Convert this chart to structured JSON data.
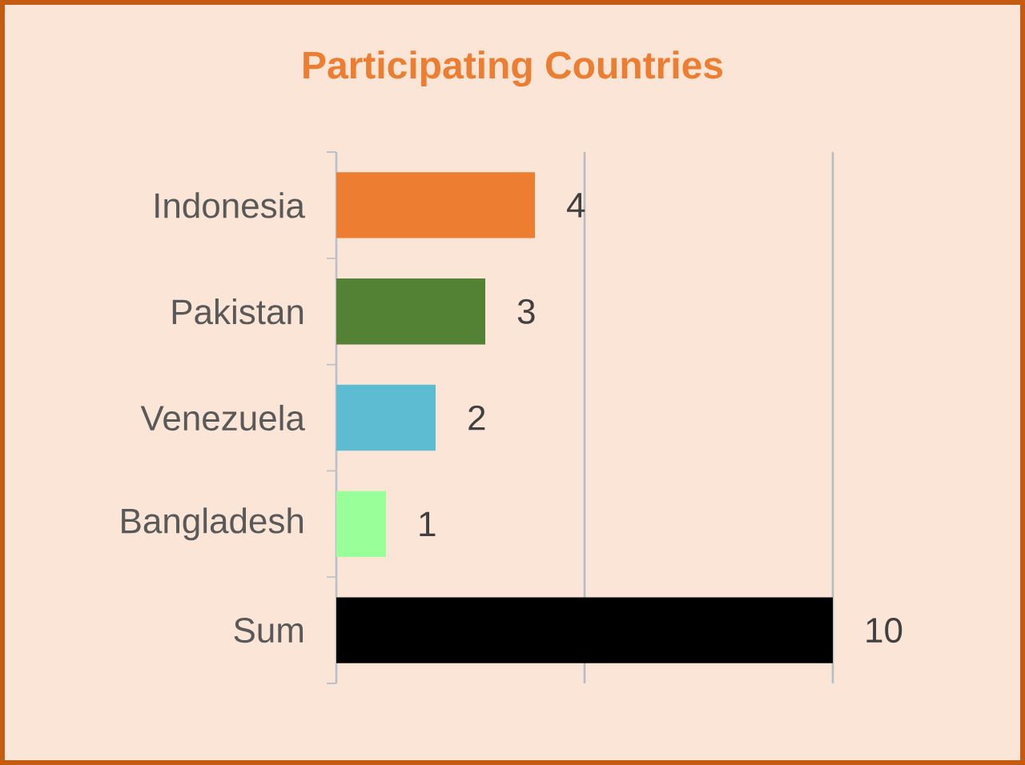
{
  "chart_data": {
    "type": "bar",
    "orientation": "horizontal",
    "title": "Participating Countries",
    "categories": [
      "Indonesia",
      "Pakistan",
      "Venezuela",
      "Bangladesh",
      "Sum"
    ],
    "values": [
      4,
      3,
      2,
      1,
      10
    ],
    "colors": [
      "#ed7d31",
      "#548235",
      "#5dbcd2",
      "#99ff99",
      "#000000"
    ],
    "xlim": [
      0,
      10
    ],
    "xticks": [
      {
        "value": 0,
        "label": null
      },
      {
        "value": 5,
        "label": null
      },
      {
        "value": 10,
        "label": null
      }
    ],
    "grid": "x",
    "data_labels": true,
    "tick_labels": "y"
  }
}
